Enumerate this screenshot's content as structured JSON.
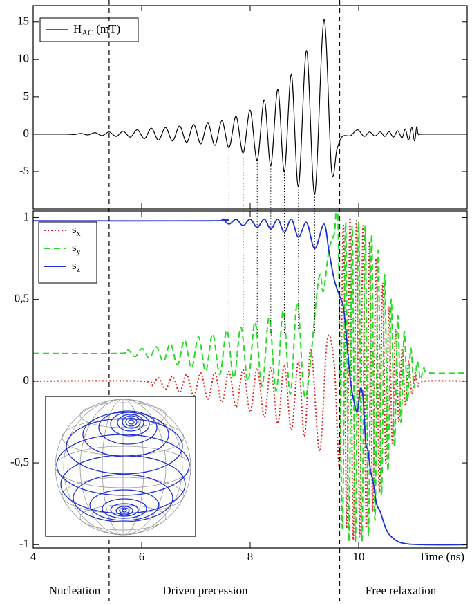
{
  "chart_data": [
    {
      "type": "line",
      "xlim": [
        4,
        12
      ],
      "xticks": [
        4,
        6,
        8,
        10
      ],
      "ylim": [
        -10,
        17.2
      ],
      "yticks": [
        -5,
        0,
        5,
        10,
        15
      ],
      "grid": false,
      "legend": "upper left",
      "markers": [
        7.61,
        7.87,
        8.13,
        8.38,
        8.63,
        8.89,
        9.19
      ],
      "series": [
        {
          "name": "H",
          "subscript": "AC",
          "unit": " (mT)",
          "color": "#000000",
          "dash": "solid",
          "x": [
            4,
            4.6,
            4.75,
            4.88,
            5.01,
            5.14,
            5.27,
            5.4,
            5.53,
            5.66,
            5.79,
            5.92,
            6.05,
            6.18,
            6.31,
            6.44,
            6.57,
            6.7,
            6.83,
            6.96,
            7.09,
            7.22,
            7.35,
            7.48,
            7.61,
            7.74,
            7.87,
            8.0,
            8.13,
            8.26,
            8.38,
            8.51,
            8.63,
            8.76,
            8.89,
            9.04,
            9.19,
            9.36,
            9.5,
            9.6,
            9.7,
            9.85,
            9.98,
            10.1,
            10.2,
            10.3,
            10.4,
            10.48,
            10.56,
            10.64,
            10.72,
            10.8,
            10.86,
            10.92,
            10.98,
            11.03,
            11.07,
            11.1,
            11.2,
            12
          ],
          "values": [
            0,
            0,
            -0.05,
            0.1,
            -0.1,
            0.2,
            -0.2,
            0.3,
            -0.3,
            0.4,
            -0.4,
            0.6,
            -0.6,
            0.8,
            -0.8,
            0.9,
            -0.9,
            1.1,
            -1.1,
            1.3,
            -1.3,
            1.5,
            -1.5,
            1.8,
            -1.8,
            2.4,
            -2.5,
            3.2,
            -3.5,
            4.6,
            -4.2,
            6.0,
            -5.0,
            8.0,
            -7.0,
            11.2,
            -8.0,
            15.3,
            -4.8,
            -2,
            -0.3,
            -0.2,
            0.6,
            -0.3,
            0.3,
            -0.25,
            0.3,
            -0.3,
            0.35,
            -0.4,
            0.45,
            -0.5,
            0.7,
            -0.8,
            0.9,
            -0.9,
            1.0,
            0,
            0,
            0
          ]
        }
      ]
    },
    {
      "type": "line",
      "x_label": "Time (ns)",
      "xlim": [
        4,
        12
      ],
      "xticks": [
        4,
        6,
        8,
        10
      ],
      "ylim": [
        -1.02,
        1.04
      ],
      "yticks": [
        -1,
        {
          "value": -0.5,
          "label": "-0,5"
        },
        0,
        {
          "value": 0.5,
          "label": "0,5"
        },
        1
      ],
      "grid": false,
      "legend": "upper left",
      "series": [
        {
          "name": "s",
          "subscript": "x",
          "color": "#e0201b",
          "dash": "dotted",
          "x": [
            4,
            6.0,
            6.18,
            6.31,
            6.44,
            6.57,
            6.7,
            6.83,
            6.96,
            7.09,
            7.22,
            7.35,
            7.48,
            7.61,
            7.74,
            7.87,
            8.0,
            8.13,
            8.26,
            8.38,
            8.51,
            8.63,
            8.76,
            8.89,
            9.0,
            9.12,
            9.28,
            9.42,
            9.55,
            9.65,
            9.72,
            9.78,
            9.84,
            9.9,
            9.96,
            10.02,
            10.08,
            10.14,
            10.2,
            10.26,
            10.32,
            10.38,
            10.44,
            10.5,
            10.56,
            10.62,
            10.68,
            10.74,
            10.8,
            10.86,
            10.92,
            10.98,
            11.04,
            11.1,
            11.2,
            12
          ],
          "values": [
            0,
            0,
            -0.03,
            0.02,
            -0.05,
            0.03,
            -0.07,
            0.04,
            -0.09,
            0.05,
            -0.11,
            0.05,
            -0.13,
            0.06,
            -0.16,
            0.07,
            -0.19,
            0.08,
            -0.22,
            0.08,
            -0.26,
            0.1,
            -0.3,
            0.12,
            -0.34,
            0.2,
            -0.43,
            0.25,
            0.1,
            -0.5,
            0.95,
            -0.9,
            1.0,
            -0.97,
            0.98,
            -0.95,
            0.95,
            -0.9,
            0.85,
            -0.8,
            0.75,
            -0.68,
            0.6,
            -0.5,
            0.45,
            -0.38,
            0.32,
            -0.25,
            0.2,
            -0.15,
            0.12,
            -0.08,
            0.05,
            -0.03,
            0,
            0
          ]
        },
        {
          "name": "s",
          "subscript": "y",
          "color": "#22dd22",
          "dash": "dashed",
          "x": [
            4,
            5.6,
            5.75,
            5.88,
            6.01,
            6.14,
            6.27,
            6.4,
            6.53,
            6.66,
            6.79,
            6.92,
            7.05,
            7.18,
            7.31,
            7.44,
            7.57,
            7.7,
            7.83,
            7.96,
            8.09,
            8.22,
            8.35,
            8.48,
            8.61,
            8.74,
            8.87,
            9.02,
            9.26,
            9.35,
            9.45,
            9.55,
            9.62,
            9.7,
            9.76,
            9.82,
            9.88,
            9.94,
            10.0,
            10.06,
            10.12,
            10.18,
            10.24,
            10.3,
            10.36,
            10.42,
            10.48,
            10.54,
            10.6,
            10.66,
            10.72,
            10.78,
            10.84,
            10.9,
            10.96,
            11.02,
            11.08,
            11.14,
            11.2,
            11.3,
            12
          ],
          "values": [
            0.17,
            0.17,
            0.19,
            0.15,
            0.2,
            0.14,
            0.21,
            0.12,
            0.23,
            0.1,
            0.25,
            0.08,
            0.27,
            0.06,
            0.29,
            0.04,
            0.31,
            0.02,
            0.33,
            0,
            0.36,
            -0.03,
            0.39,
            -0.06,
            0.43,
            -0.08,
            0.48,
            -0.1,
            0.62,
            0.55,
            0.8,
            0.9,
            0.97,
            -0.9,
            0.97,
            -0.98,
            0.95,
            -0.98,
            0.97,
            -0.98,
            0.95,
            -0.95,
            0.9,
            -0.85,
            0.8,
            -0.7,
            0.65,
            -0.55,
            0.5,
            -0.4,
            0.4,
            -0.25,
            0.3,
            -0.12,
            0.2,
            -0.04,
            0.12,
            0.01,
            0.08,
            0.05,
            0.05
          ]
        },
        {
          "name": "s",
          "subscript": "z",
          "color": "#1f2fd6",
          "dash": "solid",
          "x": [
            4,
            7.3,
            7.48,
            7.61,
            7.74,
            7.87,
            8.0,
            8.13,
            8.26,
            8.38,
            8.51,
            8.63,
            8.76,
            8.89,
            9.04,
            9.19,
            9.36,
            9.45,
            9.55,
            9.65,
            9.72,
            9.78,
            9.85,
            9.93,
            9.98,
            10.03,
            10.08,
            10.13,
            10.17,
            10.22,
            10.27,
            10.33,
            10.4,
            10.5,
            10.6,
            10.8,
            11.2,
            12
          ],
          "values": [
            0.98,
            0.98,
            0.99,
            0.96,
            0.99,
            0.95,
            0.99,
            0.94,
            0.99,
            0.93,
            0.99,
            0.91,
            0.99,
            0.88,
            0.97,
            0.81,
            0.96,
            0.8,
            0.62,
            0.52,
            0.45,
            0.25,
            0,
            -0.15,
            -0.18,
            -0.05,
            -0.1,
            -0.38,
            -0.42,
            -0.55,
            -0.62,
            -0.75,
            -0.8,
            -0.9,
            -0.95,
            -0.99,
            -1,
            -1
          ]
        }
      ]
    }
  ],
  "phase_boundaries": [
    5.4,
    9.65
  ],
  "phase_labels": [
    "Nucleation",
    "Driven precession",
    "Free relaxation"
  ]
}
